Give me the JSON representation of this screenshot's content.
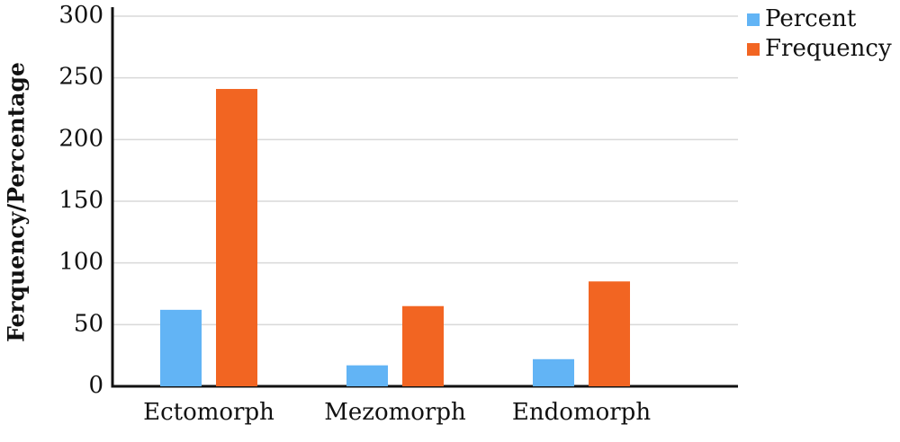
{
  "chart_data": {
    "type": "bar",
    "y_label": "Ferquency/Percentage",
    "categories": [
      "Ectomorph",
      "Mezomorph",
      "Endomorph"
    ],
    "series": [
      {
        "name": "Percent",
        "color": "#62b4f5",
        "values": [
          62,
          17,
          22
        ]
      },
      {
        "name": "Frequency",
        "color": "#f26522",
        "values": [
          241,
          65,
          85
        ]
      }
    ],
    "ylim": [
      0,
      300
    ],
    "yticks": [
      0,
      50,
      100,
      150,
      200,
      250,
      300
    ],
    "grid": true,
    "legend": "top-right"
  }
}
